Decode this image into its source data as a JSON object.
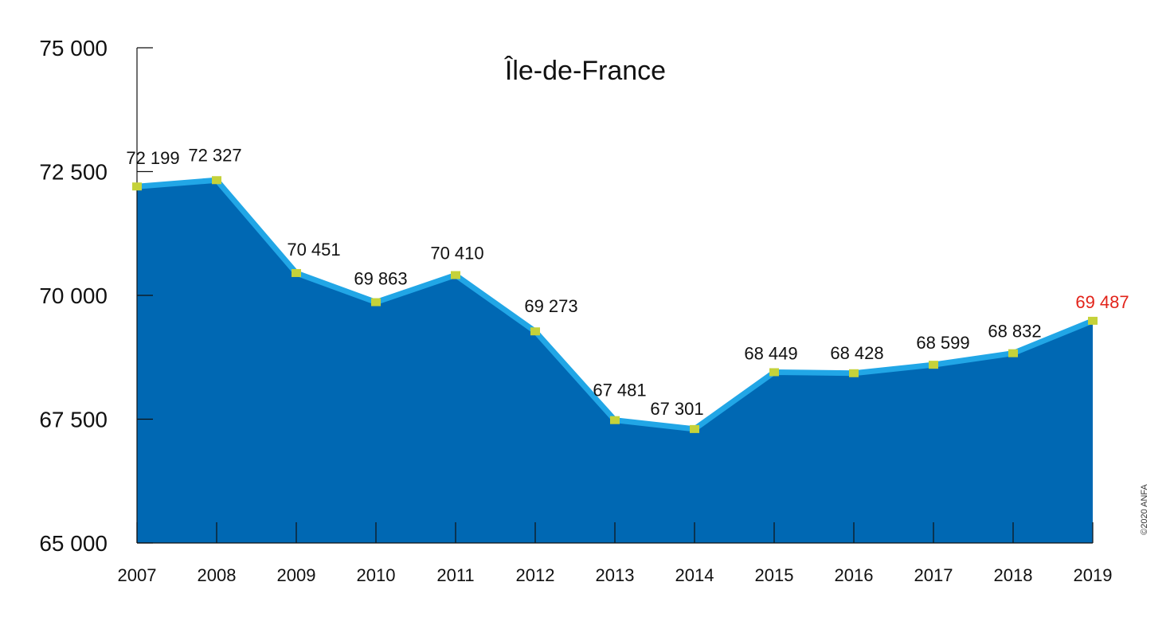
{
  "chart_data": {
    "type": "area",
    "title": "Île-de-France",
    "credit": "©2020 ANFA",
    "x": [
      "2007",
      "2008",
      "2009",
      "2010",
      "2011",
      "2012",
      "2013",
      "2014",
      "2015",
      "2016",
      "2017",
      "2018",
      "2019"
    ],
    "series": [
      {
        "values": [
          72199,
          72327,
          70451,
          69863,
          70410,
          69273,
          67481,
          67301,
          68449,
          68428,
          68599,
          68832,
          69487
        ],
        "labels": [
          "72 199",
          "72 327",
          "70 451",
          "69 863",
          "70 410",
          "69 273",
          "67 481",
          "67 301",
          "68 449",
          "68 428",
          "68 599",
          "68 832",
          "69 487"
        ]
      }
    ],
    "y_ticks": [
      65000,
      67500,
      70000,
      72500,
      75000
    ],
    "y_tick_labels": [
      "65 000",
      "67 500",
      "70 000",
      "72 500",
      "75 000"
    ],
    "ylim": [
      65000,
      75000
    ],
    "grid": false,
    "highlight_index": 12,
    "colors": {
      "area": "#0068b3",
      "line": "#21a6e6",
      "marker": "#c5d23a",
      "highlight_label": "#e2231a",
      "axis": "#111111"
    }
  }
}
